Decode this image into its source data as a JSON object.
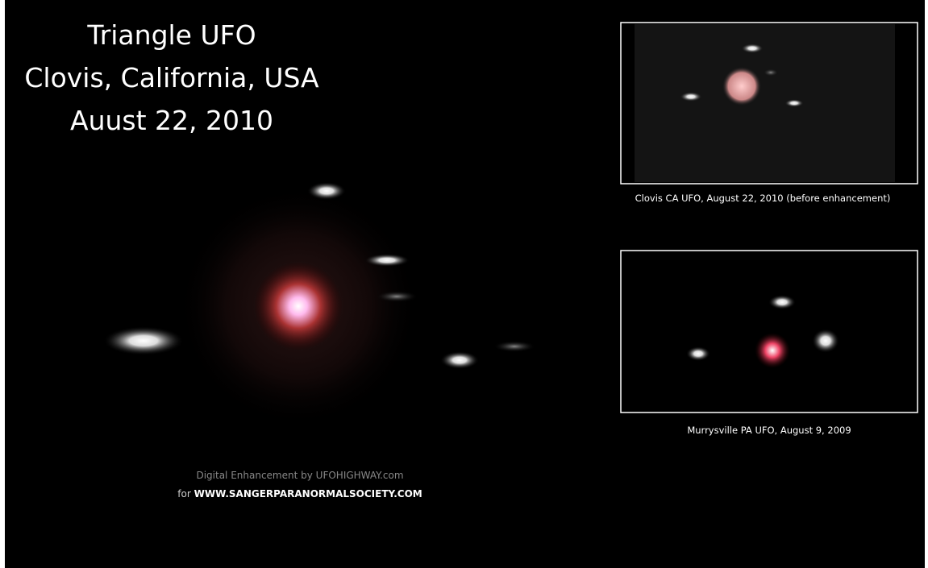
{
  "title": {
    "lines": [
      "Triangle UFO",
      "Clovis, California, USA",
      "Auust 22, 2010"
    ]
  },
  "insets": [
    {
      "caption": "Clovis CA UFO, August 22, 2010 (before enhancement)"
    },
    {
      "caption": "Murrysville PA UFO, August 9, 2009"
    }
  ],
  "credit": {
    "line1": "Digital Enhancement by UFOHIGHWAY.com",
    "prefix": "for",
    "site": "WWW.SANGERPARANORMALSOCIETY.COM"
  }
}
